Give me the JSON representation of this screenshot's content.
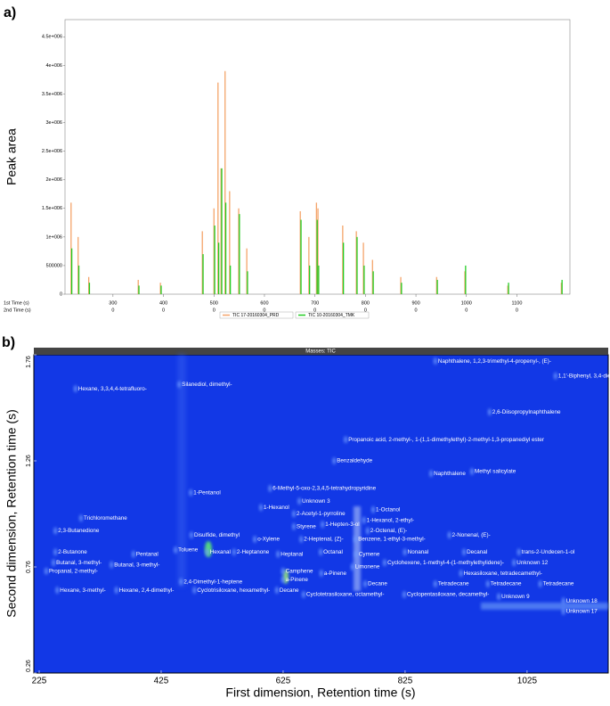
{
  "chart_data": [
    {
      "type": "stem",
      "panel_label": "a)",
      "y_label": "Peak area",
      "x_row_label": "1st Time (s)",
      "x2_row_label": "2nd Time (s)",
      "x": [
        217,
        231,
        252,
        350,
        394,
        477,
        500,
        508,
        514,
        522,
        531,
        549,
        565,
        671,
        688,
        703,
        706,
        755,
        782,
        796,
        814,
        870,
        941,
        997,
        1082,
        1188
      ],
      "series": [
        {
          "name": "TIC 17-20160304_PRD",
          "color": "#f4a46a",
          "values": [
            1600000,
            1000000,
            300000,
            250000,
            200000,
            1100000,
            1500000,
            3700000,
            2200000,
            3900000,
            1800000,
            1500000,
            800000,
            1450000,
            1000000,
            1600000,
            1500000,
            1200000,
            1100000,
            900000,
            600000,
            300000,
            300000,
            400000,
            150000,
            200000
          ]
        },
        {
          "name": "TIC 10-20160304_TMK",
          "color": "#22cc22",
          "values": [
            800000,
            500000,
            200000,
            150000,
            150000,
            700000,
            1200000,
            900000,
            2200000,
            1600000,
            500000,
            1400000,
            400000,
            1300000,
            500000,
            1300000,
            500000,
            900000,
            1000000,
            500000,
            400000,
            200000,
            250000,
            500000,
            200000,
            250000
          ]
        }
      ],
      "xlim": [
        205,
        1205
      ],
      "xticks": [
        300,
        400,
        500,
        600,
        700,
        800,
        900,
        1000,
        1100
      ],
      "second_time_ticks": [
        0,
        0,
        0,
        0,
        0,
        0,
        0,
        0,
        0
      ],
      "ylim": [
        0,
        4800000
      ],
      "yticks": [
        0,
        500000,
        {
          "value": 1000000,
          "label": "1e+006"
        },
        {
          "value": 1500000,
          "label": "1.5e+006"
        },
        {
          "value": 2000000,
          "label": "2e+006"
        },
        {
          "value": 2500000,
          "label": "2.5e+006"
        },
        {
          "value": 3000000,
          "label": "3e+006"
        },
        {
          "value": 3500000,
          "label": "3.5e+006"
        },
        {
          "value": 4000000,
          "label": "4e+006"
        },
        {
          "value": 4500000,
          "label": "4.5e+006"
        }
      ]
    },
    {
      "type": "contour",
      "panel_label": "b)",
      "title": "Masses: TIC",
      "x_label": "First dimension, Retention time (s)",
      "y_label": "Second dimension, Retention time (s)",
      "xlim": [
        225,
        1158
      ],
      "xticks": [
        225,
        425,
        625,
        825,
        1025
      ],
      "ylim": [
        0.26,
        1.76
      ],
      "yticks": [
        0.26,
        0.76,
        1.26,
        1.76
      ],
      "spots": {
        "labels": [
          "Naphthalene, 1,2,3-trimethyl-4-propenyl-, (E)-",
          "1,1'-Biphenyl, 3,4-diethyl-",
          "Hexane, 3,3,4,4-tetrafluoro-",
          "Silanediol, dimethyl-",
          "2,6-Diisopropylnaphthalene",
          "Propanoic acid, 2-methyl-, 1-(1,1-dimethylethyl)-2-methyl-1,3-propanediyl ester",
          "Benzaldehyde",
          "Naphthalene",
          "Methyl salicylate",
          "1-Pentanol",
          "6-Methyl-5-oxo-2,3,4,5-tetrahydropyridine",
          "Unknown 3",
          "1-Hexanol",
          "2-Acetyl-1-pyrroline",
          "Trichloromethane",
          "1-Hepten-3-ol",
          "1-Octanol",
          "1-Hexanol, 2-ethyl-",
          "2,3-Butanedione",
          "Styrene",
          "2-Octenal, (E)-",
          "Disulfide, dimethyl",
          "Benzene, 1-ethyl-3-methyl-",
          "2-Nonenal, (E)-",
          "o-Xylene",
          "2-Heptenal, (Z)-",
          "2-Butanone",
          "Toluene",
          "Hexanal",
          "2-Heptanone",
          "Heptanal",
          "Octanal",
          "Cymene",
          "Nonanal",
          "Decanal",
          "trans-2-Undecen-1-ol",
          "Pentanal",
          "Butanal, 3-methyl-",
          "Butanal, 3-methyl-",
          "Limonene",
          "Cyclohexene, 1-methyl-4-(1-methylethylidene)-",
          "Unknown 12",
          "Camphene",
          "a-Pinene",
          "Propanal, 2-methyl-",
          "Hexasiloxane, tetradecamethyl-",
          "a-Pinene",
          "2,4-Dimethyl-1-heptene",
          "Decane",
          "Tetradecane",
          "Tetradecane",
          "Tetradecane",
          "Hexane, 3-methyl-",
          "Hexane, 2,4-dimethyl-",
          "Cyclotrisiloxane, hexamethyl-",
          "Decane",
          "Cyclotetrasiloxane, octamethyl-",
          "Cyclopentasiloxane, decamethyl-",
          "Unknown 9",
          "Unknown 18",
          "Unknown 17"
        ],
        "x": [
          879,
          1076,
          289,
          459,
          968,
          732,
          713,
          872,
          939,
          478,
          608,
          656,
          593,
          647,
          298,
          694,
          777,
          762,
          256,
          647,
          768,
          479,
          748,
          902,
          583,
          659,
          256,
          453,
          505,
          549,
          621,
          691,
          749,
          829,
          926,
          1016,
          384,
          253,
          348,
          743,
          796,
          1008,
          629,
          692,
          241,
          921,
          629,
          462,
          764,
          879,
          965,
          1051,
          259,
          356,
          484,
          619,
          663,
          828,
          983,
          1089,
          1089
        ],
        "y": [
          1.73,
          1.66,
          1.6,
          1.62,
          1.49,
          1.36,
          1.26,
          1.2,
          1.21,
          1.11,
          1.13,
          1.07,
          1.04,
          1.01,
          0.99,
          0.96,
          1.03,
          0.98,
          0.93,
          0.95,
          0.93,
          0.91,
          0.89,
          0.91,
          0.89,
          0.89,
          0.83,
          0.84,
          0.83,
          0.83,
          0.82,
          0.83,
          0.82,
          0.83,
          0.83,
          0.83,
          0.82,
          0.78,
          0.77,
          0.76,
          0.78,
          0.78,
          0.74,
          0.73,
          0.74,
          0.73,
          0.7,
          0.69,
          0.68,
          0.68,
          0.68,
          0.68,
          0.65,
          0.65,
          0.65,
          0.65,
          0.63,
          0.63,
          0.62,
          0.6,
          0.55
        ]
      }
    }
  ]
}
